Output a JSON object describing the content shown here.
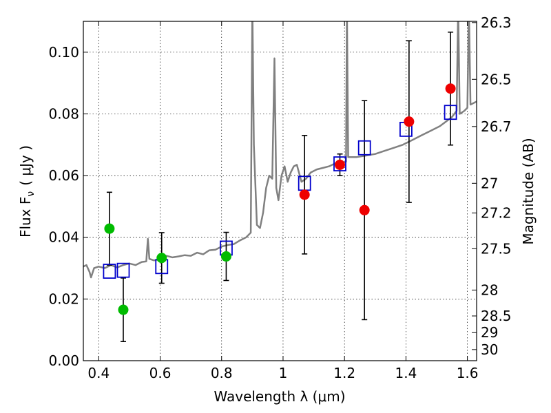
{
  "chart_data": {
    "type": "scatter",
    "title": "",
    "xlabel": "Wavelength  λ (μm)",
    "ylabel": "Flux  F",
    "ylabel_sub": "ν",
    "ylabel_unit": "( μJy )",
    "y2label": "Magnitude (AB)",
    "xlim": [
      0.35,
      1.63
    ],
    "ylim": [
      0.0,
      0.11
    ],
    "grid": true,
    "xticks": [
      0.4,
      0.6,
      0.8,
      1.0,
      1.2,
      1.4,
      1.6
    ],
    "xtick_labels": [
      "0.4",
      "0.6",
      "0.8",
      "1",
      "1.2",
      "1.4",
      "1.6"
    ],
    "yticks": [
      0.0,
      0.02,
      0.04,
      0.06,
      0.08,
      0.1
    ],
    "ytick_labels": [
      "0.00",
      "0.02",
      "0.04",
      "0.06",
      "0.08",
      "0.10"
    ],
    "y2ticks": [
      {
        "label": "26.3",
        "flux": 0.1096
      },
      {
        "label": "26.5",
        "flux": 0.0912
      },
      {
        "label": "26.7",
        "flux": 0.0759
      },
      {
        "label": "27",
        "flux": 0.0575
      },
      {
        "label": "27.2",
        "flux": 0.0479
      },
      {
        "label": "27.5",
        "flux": 0.0363
      },
      {
        "label": "28",
        "flux": 0.0229
      },
      {
        "label": "28.5",
        "flux": 0.0145
      },
      {
        "label": "29",
        "flux": 0.0091
      },
      {
        "label": "30",
        "flux": 0.0036
      }
    ],
    "series": [
      {
        "name": "template_spectrum",
        "kind": "line",
        "color": "#808080",
        "points": [
          [
            0.35,
            0.0305
          ],
          [
            0.36,
            0.031
          ],
          [
            0.37,
            0.0288
          ],
          [
            0.375,
            0.027
          ],
          [
            0.385,
            0.03
          ],
          [
            0.4,
            0.0305
          ],
          [
            0.42,
            0.03
          ],
          [
            0.44,
            0.031
          ],
          [
            0.46,
            0.0302
          ],
          [
            0.48,
            0.031
          ],
          [
            0.5,
            0.0315
          ],
          [
            0.52,
            0.031
          ],
          [
            0.54,
            0.032
          ],
          [
            0.555,
            0.0322
          ],
          [
            0.56,
            0.0395
          ],
          [
            0.565,
            0.033
          ],
          [
            0.58,
            0.0325
          ],
          [
            0.6,
            0.033
          ],
          [
            0.62,
            0.034
          ],
          [
            0.64,
            0.0335
          ],
          [
            0.66,
            0.0338
          ],
          [
            0.68,
            0.0342
          ],
          [
            0.7,
            0.034
          ],
          [
            0.72,
            0.035
          ],
          [
            0.74,
            0.0345
          ],
          [
            0.76,
            0.0358
          ],
          [
            0.78,
            0.036
          ],
          [
            0.8,
            0.037
          ],
          [
            0.82,
            0.0375
          ],
          [
            0.84,
            0.0378
          ],
          [
            0.86,
            0.039
          ],
          [
            0.88,
            0.04
          ],
          [
            0.895,
            0.0415
          ],
          [
            0.9,
            0.115
          ],
          [
            0.905,
            0.07
          ],
          [
            0.915,
            0.044
          ],
          [
            0.925,
            0.043
          ],
          [
            0.935,
            0.048
          ],
          [
            0.945,
            0.056
          ],
          [
            0.955,
            0.06
          ],
          [
            0.965,
            0.059
          ],
          [
            0.972,
            0.098
          ],
          [
            0.978,
            0.056
          ],
          [
            0.985,
            0.052
          ],
          [
            0.995,
            0.06
          ],
          [
            1.005,
            0.063
          ],
          [
            1.015,
            0.058
          ],
          [
            1.025,
            0.061
          ],
          [
            1.035,
            0.063
          ],
          [
            1.045,
            0.0635
          ],
          [
            1.06,
            0.058
          ],
          [
            1.075,
            0.059
          ],
          [
            1.09,
            0.061
          ],
          [
            1.11,
            0.062
          ],
          [
            1.13,
            0.0625
          ],
          [
            1.15,
            0.063
          ],
          [
            1.17,
            0.064
          ],
          [
            1.19,
            0.0638
          ],
          [
            1.205,
            0.0645
          ],
          [
            1.208,
            0.115
          ],
          [
            1.212,
            0.066
          ],
          [
            1.24,
            0.066
          ],
          [
            1.27,
            0.0665
          ],
          [
            1.3,
            0.067
          ],
          [
            1.33,
            0.068
          ],
          [
            1.36,
            0.069
          ],
          [
            1.39,
            0.07
          ],
          [
            1.42,
            0.0715
          ],
          [
            1.45,
            0.073
          ],
          [
            1.48,
            0.0745
          ],
          [
            1.51,
            0.076
          ],
          [
            1.53,
            0.0775
          ],
          [
            1.55,
            0.079
          ],
          [
            1.565,
            0.081
          ],
          [
            1.57,
            0.115
          ],
          [
            1.575,
            0.08
          ],
          [
            1.59,
            0.081
          ],
          [
            1.6,
            0.082
          ],
          [
            1.605,
            0.115
          ],
          [
            1.61,
            0.083
          ],
          [
            1.63,
            0.084
          ]
        ]
      },
      {
        "name": "model_photometry",
        "kind": "marker",
        "marker": "square",
        "color": "#0000cc",
        "x": [
          0.435,
          0.48,
          0.605,
          0.815,
          1.07,
          1.185,
          1.265,
          1.4,
          1.545
        ],
        "y": [
          0.029,
          0.0293,
          0.0305,
          0.0365,
          0.0575,
          0.0638,
          0.069,
          0.075,
          0.0805
        ]
      },
      {
        "name": "observed_optical",
        "kind": "marker",
        "marker": "circle",
        "color": "#00bb00",
        "x": [
          0.435,
          0.48,
          0.605,
          0.815
        ],
        "y": [
          0.0428,
          0.0165,
          0.0333,
          0.0338
        ],
        "yerr": [
          0.0118,
          0.0103,
          0.0082,
          0.0078
        ]
      },
      {
        "name": "observed_nir",
        "kind": "marker",
        "marker": "circle",
        "color": "#ee0000",
        "x": [
          1.07,
          1.185,
          1.265,
          1.41,
          1.545
        ],
        "y": [
          0.0538,
          0.0635,
          0.0488,
          0.0775,
          0.0882
        ],
        "yerr": [
          0.0192,
          0.0035,
          0.0355,
          0.0262,
          0.0183
        ]
      }
    ]
  }
}
